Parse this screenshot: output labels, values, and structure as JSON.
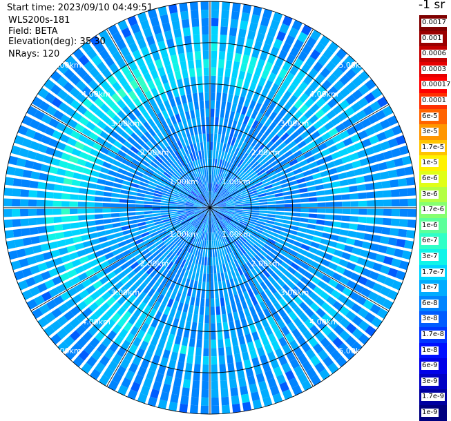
{
  "chart_data": {
    "type": "heatmap",
    "projection": "polar (PPI scan)",
    "info": {
      "start_time": "Start time: 2023/09/10 04:49:51",
      "device": "WLS200s-181",
      "field": "Field: BETA",
      "elevation": "Elevation(deg): 35.30",
      "nrays": "NRays: 120"
    },
    "n_rays": 120,
    "max_range_km": 5.0,
    "range_rings_km": [
      1,
      2,
      3,
      4,
      5
    ],
    "range_labels": [
      "1.00km",
      "2.00km",
      "3.00km",
      "4.00km",
      "5.00km"
    ],
    "spoke_interval_deg": 30,
    "field_pattern": {
      "description": "background backscatter mostly 1e-8 to 1e-7 with an enhanced ring of ~1e-7 to 3e-7 between 3 and 4 km",
      "ring_peak_km": 3.5
    },
    "colorbar": {
      "unit": "-1 sr",
      "labels": [
        "0.0017",
        "0.001",
        "0.0006",
        "0.0003",
        "0.00017",
        "0.0001",
        "6e-5",
        "3e-5",
        "1.7e-5",
        "1e-5",
        "6e-6",
        "3e-6",
        "1.7e-6",
        "1e-6",
        "6e-7",
        "3e-7",
        "1.7e-7",
        "1e-7",
        "6e-8",
        "3e-8",
        "1.7e-8",
        "1e-8",
        "6e-9",
        "3e-9",
        "1.7e-9",
        "1e-9"
      ],
      "colors": [
        "#7f0000",
        "#9a0000",
        "#c40000",
        "#e60000",
        "#ff0000",
        "#ff3000",
        "#ff6300",
        "#ff9600",
        "#ffc400",
        "#fff200",
        "#e0ff17",
        "#b4ff43",
        "#86ff70",
        "#5cff9a",
        "#30ffc7",
        "#0ff4e8",
        "#00d4ff",
        "#00acff",
        "#0084ff",
        "#005cff",
        "#0036ff",
        "#0010ff",
        "#0000e8",
        "#0000c4",
        "#0000a0",
        "#00007f"
      ]
    }
  }
}
